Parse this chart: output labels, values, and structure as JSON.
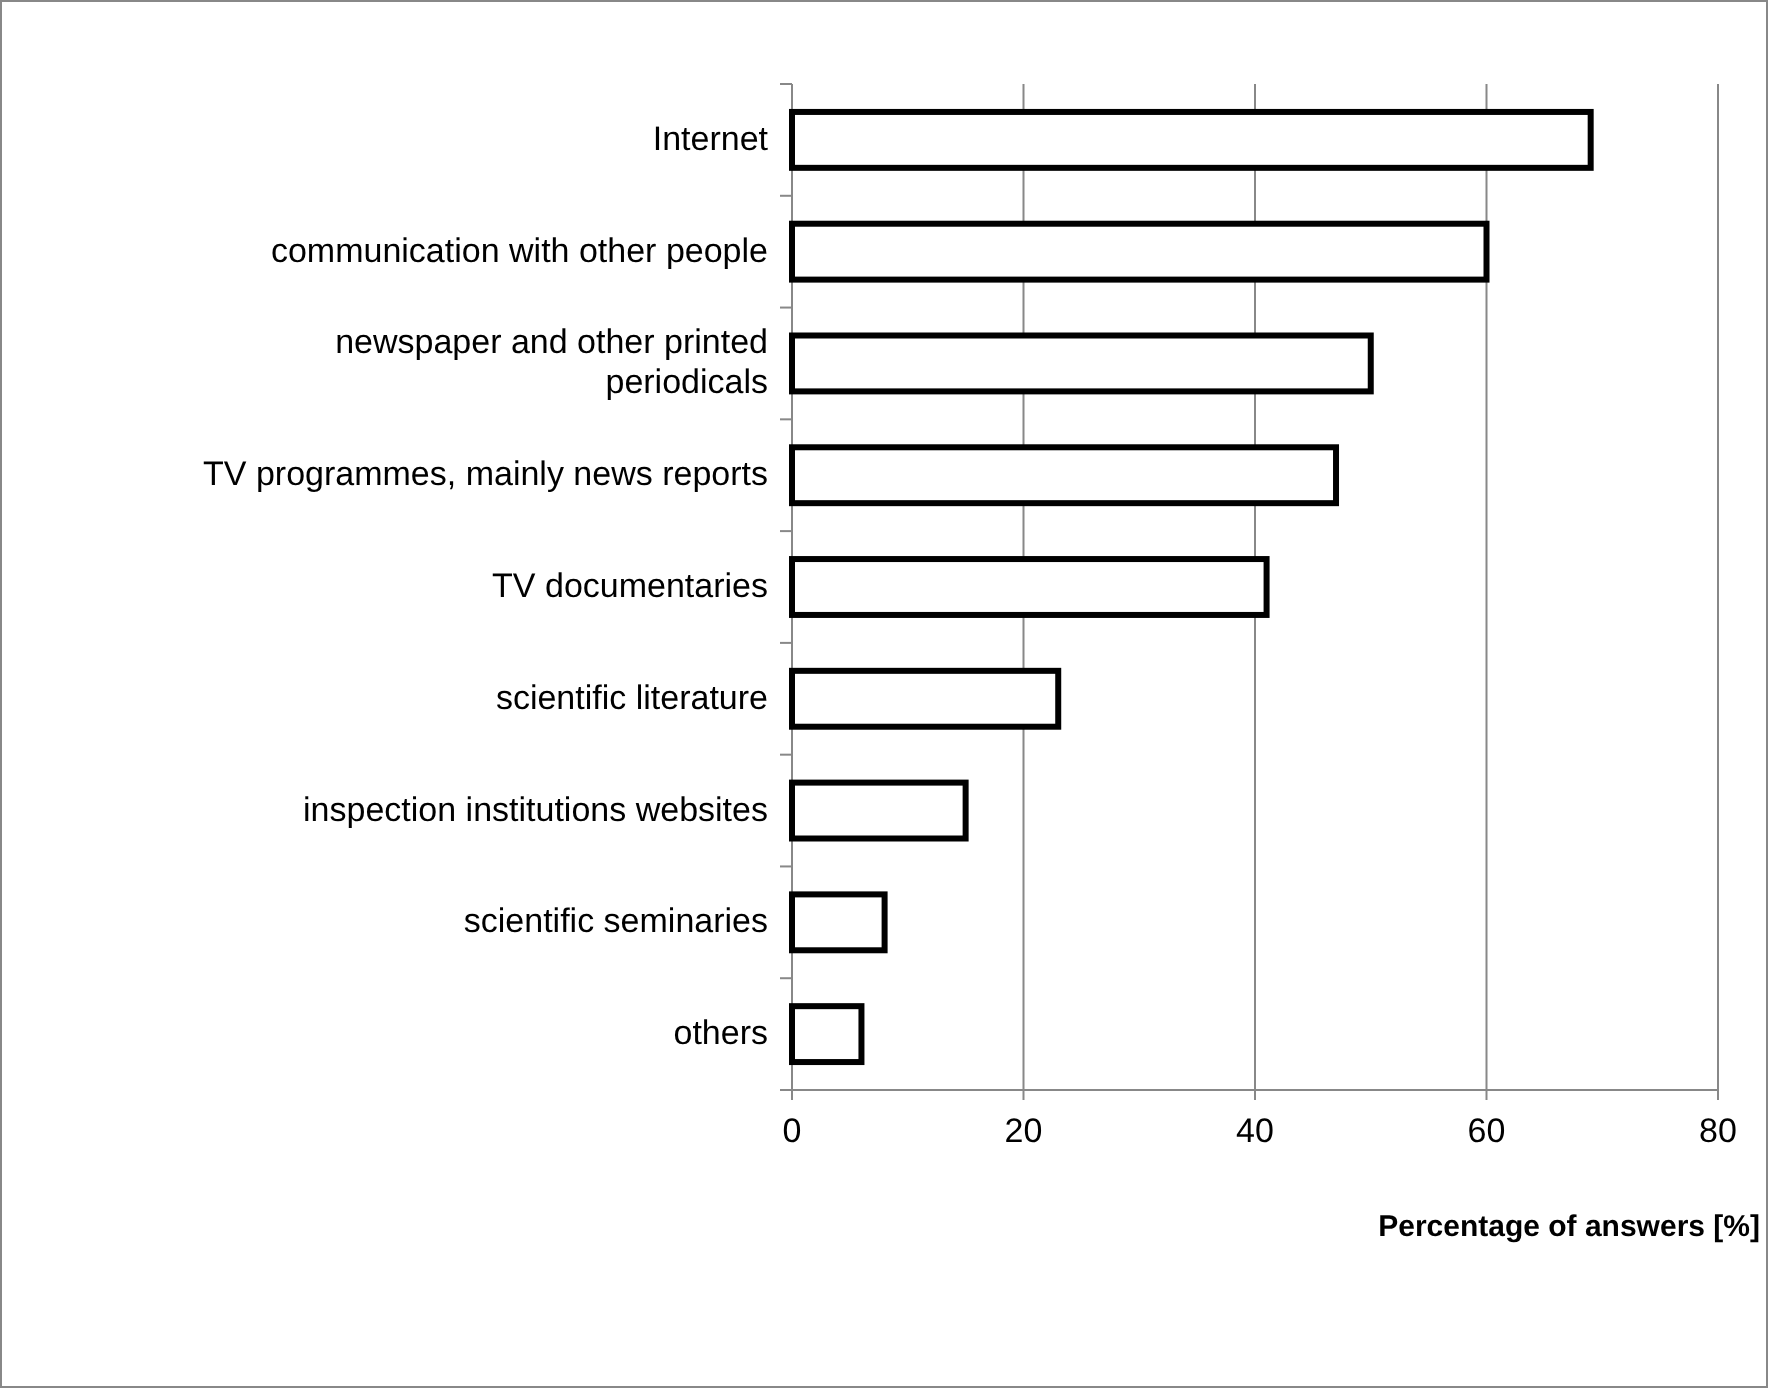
{
  "chart_data": {
    "type": "bar",
    "orientation": "horizontal",
    "xlabel": "Percentage of answers [%]",
    "categories": [
      "Internet",
      "communication with other people",
      "newspaper and other printed periodicals",
      "TV programmes, mainly news reports",
      "TV documentaries",
      "scientific literature",
      "inspection  institutions websites",
      "scientific seminaries",
      "others"
    ],
    "values": [
      69,
      60,
      50,
      47,
      41,
      23,
      15,
      8,
      6
    ],
    "color": "#ffffff",
    "xlim": [
      0,
      80
    ],
    "xticks": [
      0,
      20,
      40,
      60,
      80
    ],
    "grid": "x"
  }
}
